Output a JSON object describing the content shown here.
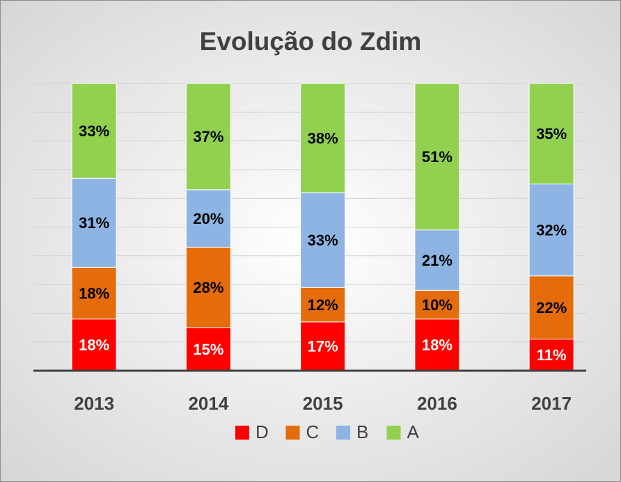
{
  "chart_data": {
    "type": "stacked_bar",
    "title": "Evolução do Zdim",
    "categories": [
      "2013",
      "2014",
      "2015",
      "2016",
      "2017"
    ],
    "series": [
      {
        "name": "D",
        "color": "#ff0000",
        "values": [
          18,
          15,
          17,
          18,
          11
        ],
        "value_labels": [
          "18%",
          "15%",
          "17%",
          "18%",
          "11%"
        ]
      },
      {
        "name": "C",
        "color": "#e46c0a",
        "values": [
          18,
          28,
          12,
          10,
          22
        ],
        "value_labels": [
          "18%",
          "28%",
          "12%",
          "10%",
          "22%"
        ]
      },
      {
        "name": "B",
        "color": "#8eb4e3",
        "values": [
          31,
          20,
          33,
          21,
          32
        ],
        "value_labels": [
          "31%",
          "20%",
          "33%",
          "21%",
          "32%"
        ]
      },
      {
        "name": "A",
        "color": "#92d050",
        "values": [
          33,
          37,
          38,
          51,
          35
        ],
        "value_labels": [
          "33%",
          "37%",
          "38%",
          "51%",
          "35%"
        ]
      }
    ],
    "ylim": [
      0,
      100
    ],
    "yticks": [
      0,
      10,
      20,
      30,
      40,
      50,
      60,
      70,
      80,
      90,
      100
    ],
    "grid": true,
    "legend": "bottom"
  }
}
